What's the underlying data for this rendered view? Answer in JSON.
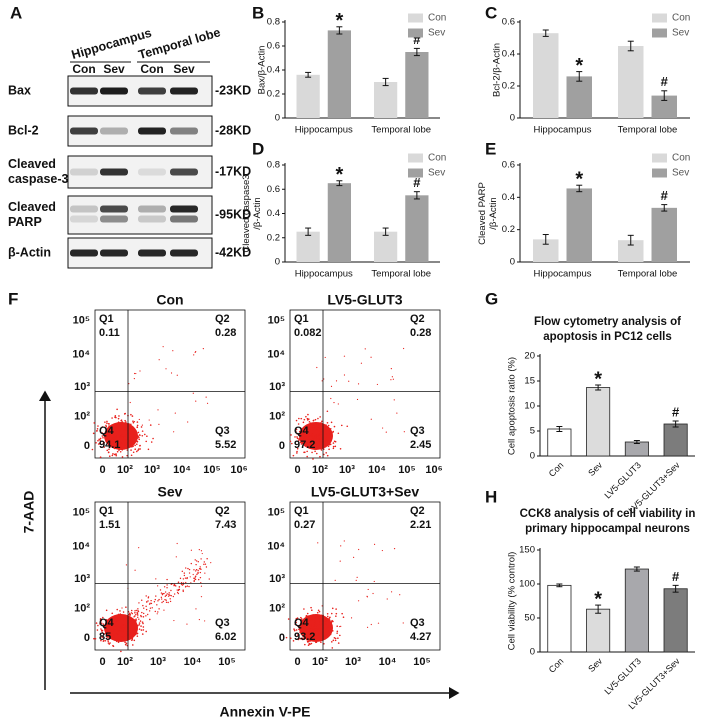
{
  "panel_labels": [
    "A",
    "B",
    "C",
    "D",
    "E",
    "F",
    "G",
    "H"
  ],
  "western_blot": {
    "groups": [
      "Hippocampus",
      "Temporal lobe"
    ],
    "lanes": [
      "Con",
      "Sev",
      "Con",
      "Sev"
    ],
    "rows": [
      {
        "label": [
          "Bax"
        ],
        "size": "-23KD"
      },
      {
        "label": [
          "Bcl-2"
        ],
        "size": "-28KD"
      },
      {
        "label": [
          "Cleaved",
          "caspase-3"
        ],
        "size": "-17KD"
      },
      {
        "label": [
          "Cleaved",
          "PARP"
        ],
        "size": "-95KD"
      },
      {
        "label": [
          "β-Actin"
        ],
        "size": "-42KD"
      }
    ]
  },
  "flow_cytometry": {
    "y_label": "7-AAD",
    "x_label": "Annexin V-PE",
    "plots": [
      {
        "title": "Con",
        "quadrants": [
          {
            "name": "Q1",
            "value": 0.11
          },
          {
            "name": "Q2",
            "value": 0.28
          },
          {
            "name": "Q3",
            "value": 5.52
          },
          {
            "name": "Q4",
            "value": 94.1
          }
        ],
        "xticks": [
          "0",
          "10²",
          "10³",
          "10⁴",
          "10⁵",
          "10⁶"
        ],
        "yticks": [
          "0",
          "10²",
          "10³",
          "10⁴",
          "10⁵"
        ]
      },
      {
        "title": "LV5-GLUT3",
        "quadrants": [
          {
            "name": "Q1",
            "value": 0.082
          },
          {
            "name": "Q2",
            "value": 0.28
          },
          {
            "name": "Q3",
            "value": 2.45
          },
          {
            "name": "Q4",
            "value": 97.2
          }
        ],
        "xticks": [
          "0",
          "10²",
          "10³",
          "10⁴",
          "10⁵",
          "10⁶"
        ],
        "yticks": [
          "0",
          "10²",
          "10³",
          "10⁴",
          "10⁵"
        ]
      },
      {
        "title": "Sev",
        "quadrants": [
          {
            "name": "Q1",
            "value": 1.51
          },
          {
            "name": "Q2",
            "value": 7.43
          },
          {
            "name": "Q3",
            "value": 6.02
          },
          {
            "name": "Q4",
            "value": 85
          }
        ],
        "xticks": [
          "0",
          "10²",
          "10³",
          "10⁴",
          "10⁵"
        ],
        "yticks": [
          "0",
          "10²",
          "10³",
          "10⁴",
          "10⁵"
        ]
      },
      {
        "title": "LV5-GLUT3+Sev",
        "quadrants": [
          {
            "name": "Q1",
            "value": 0.27
          },
          {
            "name": "Q2",
            "value": 2.21
          },
          {
            "name": "Q3",
            "value": 4.27
          },
          {
            "name": "Q4",
            "value": 93.2
          }
        ],
        "xticks": [
          "0",
          "10²",
          "10³",
          "10⁴",
          "10⁵"
        ],
        "yticks": [
          "0",
          "10²",
          "10³",
          "10⁴",
          "10⁵"
        ]
      }
    ]
  },
  "chart_data": [
    {
      "type": "bar",
      "ylabel": [
        "Bax/β-Actin"
      ],
      "categories": [
        "Hippocampus",
        "Temporal lobe"
      ],
      "series": [
        {
          "name": "Con",
          "color": "#d9d9d9",
          "values": [
            0.36,
            0.3
          ],
          "errors": [
            0.02,
            0.03
          ]
        },
        {
          "name": "Sev",
          "color": "#a0a0a0",
          "values": [
            0.73,
            0.55
          ],
          "errors": [
            0.03,
            0.03
          ],
          "annotations": [
            "*",
            "#"
          ]
        }
      ],
      "ylim": [
        0,
        0.8
      ],
      "yticks": [
        0,
        0.2,
        0.4,
        0.6,
        0.8
      ],
      "legend": "upper right"
    },
    {
      "type": "bar",
      "ylabel": [
        "Bcl-2/β-Actin"
      ],
      "categories": [
        "Hippocampus",
        "Temporal lobe"
      ],
      "series": [
        {
          "name": "Con",
          "color": "#d9d9d9",
          "values": [
            0.53,
            0.45
          ],
          "errors": [
            0.02,
            0.03
          ]
        },
        {
          "name": "Sev",
          "color": "#a0a0a0",
          "values": [
            0.26,
            0.14
          ],
          "errors": [
            0.03,
            0.03
          ],
          "annotations": [
            "*",
            "#"
          ]
        }
      ],
      "ylim": [
        0,
        0.6
      ],
      "yticks": [
        0,
        0.2,
        0.4,
        0.6
      ],
      "legend": "upper right"
    },
    {
      "type": "bar",
      "ylabel": [
        "Cleaved caspase3",
        "/β-Actin"
      ],
      "categories": [
        "Hippocampus",
        "Temporal lobe"
      ],
      "series": [
        {
          "name": "Con",
          "color": "#d9d9d9",
          "values": [
            0.25,
            0.25
          ],
          "errors": [
            0.03,
            0.03
          ]
        },
        {
          "name": "Sev",
          "color": "#a0a0a0",
          "values": [
            0.65,
            0.55
          ],
          "errors": [
            0.02,
            0.03
          ],
          "annotations": [
            "*",
            "#"
          ]
        }
      ],
      "ylim": [
        0,
        0.8
      ],
      "yticks": [
        0,
        0.2,
        0.4,
        0.6,
        0.8
      ],
      "legend": "upper right"
    },
    {
      "type": "bar",
      "ylabel": [
        "Cleaved PARP",
        "/β-Actin"
      ],
      "categories": [
        "Hippocampus",
        "Temporal lobe"
      ],
      "series": [
        {
          "name": "Con",
          "color": "#d9d9d9",
          "values": [
            0.14,
            0.135
          ],
          "errors": [
            0.03,
            0.03
          ]
        },
        {
          "name": "Sev",
          "color": "#a0a0a0",
          "values": [
            0.455,
            0.335
          ],
          "errors": [
            0.02,
            0.02
          ],
          "annotations": [
            "*",
            "#"
          ]
        }
      ],
      "ylim": [
        0,
        0.6
      ],
      "yticks": [
        0,
        0.2,
        0.4,
        0.6
      ],
      "legend": "upper right"
    },
    {
      "type": "bar",
      "title": [
        "Flow cytometry analysis of",
        "apoptosis in PC12 cells"
      ],
      "ylabel": [
        "Cell apoptosis ratio (%)"
      ],
      "categories": [
        "Con",
        "Sev",
        "LV5-GLUT3",
        "LV5-GLUT3+Sev"
      ],
      "values": [
        5.4,
        13.7,
        2.8,
        6.4
      ],
      "errors": [
        0.5,
        0.5,
        0.3,
        0.6
      ],
      "annotations": [
        null,
        "*",
        null,
        "#"
      ],
      "colors": [
        "#ffffff",
        "#dcdcdc",
        "#a8a8ac",
        "#7c7c7c"
      ],
      "ylim": [
        0,
        20
      ],
      "yticks": [
        0,
        5,
        10,
        15,
        20
      ]
    },
    {
      "type": "bar",
      "title": [
        "CCK8 analysis of cell viability in",
        "primary hippocampal neurons"
      ],
      "ylabel": [
        "Cell viability (% control)"
      ],
      "categories": [
        "Con",
        "Sev",
        "LV5-GLUT3",
        "LV5-GLUT3+Sev"
      ],
      "values": [
        98,
        63,
        122,
        93
      ],
      "errors": [
        2,
        6,
        3,
        5
      ],
      "annotations": [
        null,
        "*",
        null,
        "#"
      ],
      "colors": [
        "#ffffff",
        "#dcdcdc",
        "#a8a8ac",
        "#7c7c7c"
      ],
      "ylim": [
        0,
        150
      ],
      "yticks": [
        0,
        50,
        100,
        150
      ]
    }
  ]
}
